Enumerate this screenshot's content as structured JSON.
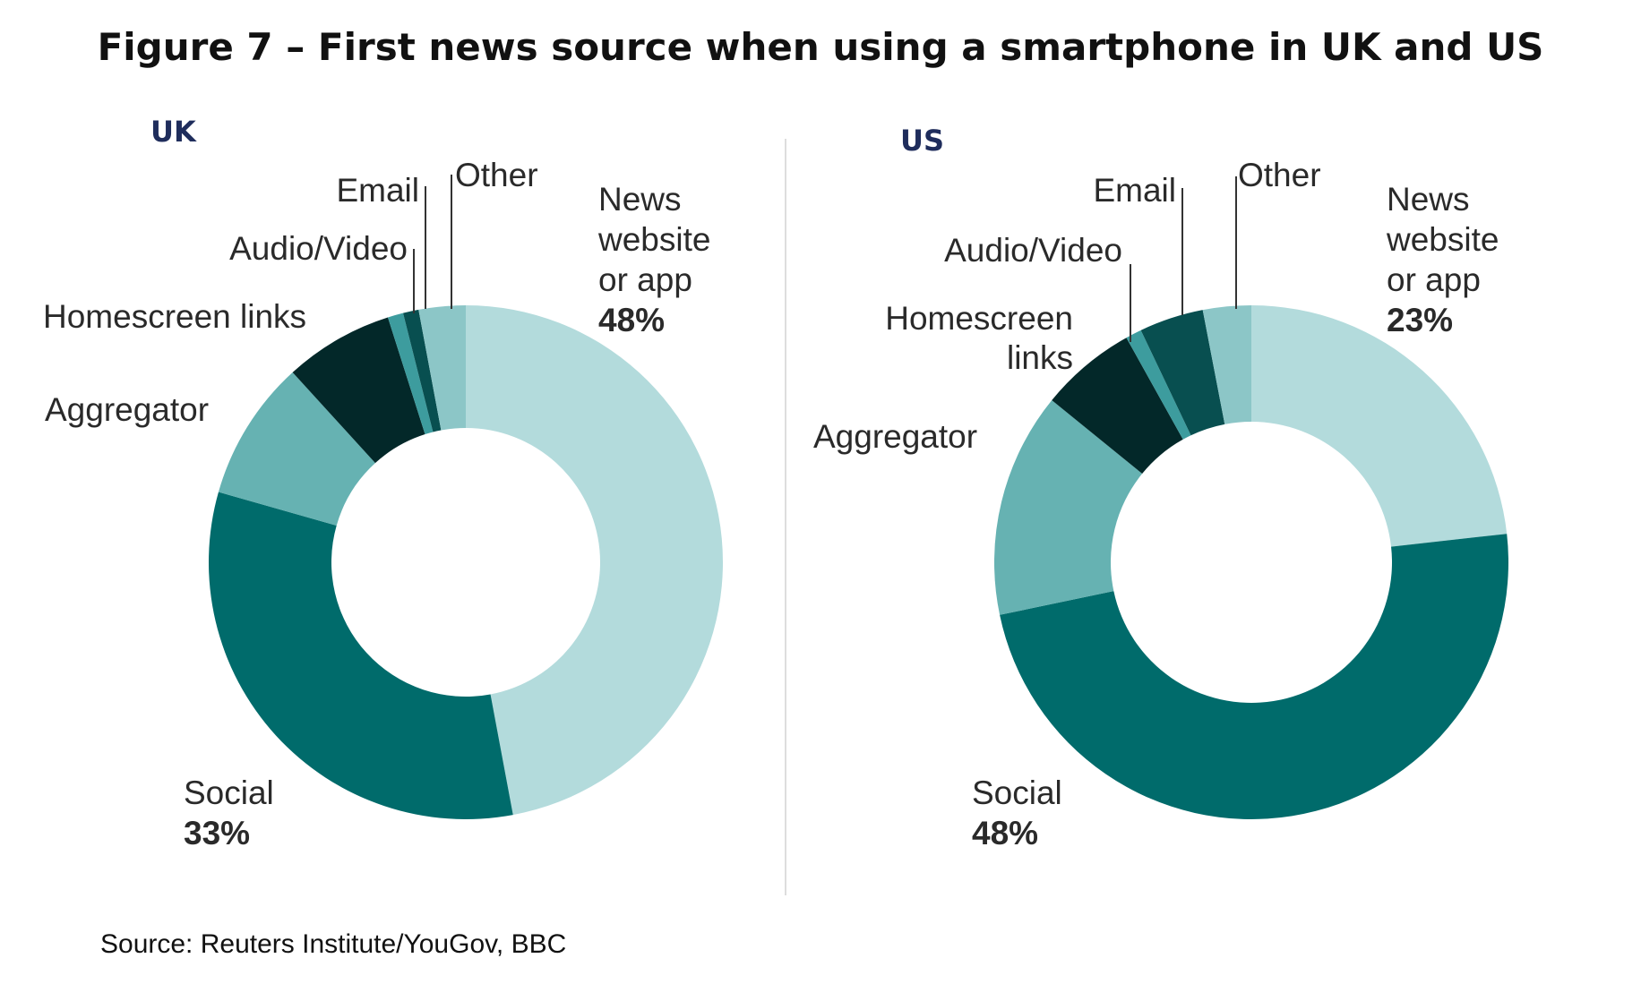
{
  "figure": {
    "title": "Figure 7 – First news source when using a smartphone in UK and US",
    "source": "Source: Reuters Institute/YouGov, BBC"
  },
  "colors": {
    "news_website": "#b3dbdc",
    "social": "#006b6b",
    "aggregator": "#66b2b2",
    "homescreen": "#032829",
    "audio_video": "#3d9c9e",
    "email": "#084f50",
    "other": "#8cc6c7",
    "leader": "#333333"
  },
  "chart_data": [
    {
      "type": "pie",
      "title": "UK",
      "categories": [
        "News website or app",
        "Social",
        "Aggregator",
        "Homescreen links",
        "Audio/Video",
        "Email",
        "Other"
      ],
      "values": [
        48,
        33,
        9,
        7,
        1,
        1,
        3
      ],
      "labels": {
        "news": [
          "News",
          "website",
          "or app"
        ],
        "news_pct": "48%",
        "social": "Social",
        "social_pct": "33%",
        "aggregator": "Aggregator",
        "homescreen": [
          "Homescreen links"
        ],
        "audio_video": "Audio/Video",
        "email": "Email",
        "other": "Other"
      }
    },
    {
      "type": "pie",
      "title": "US",
      "categories": [
        "News website or app",
        "Social",
        "Aggregator",
        "Homescreen links",
        "Audio/Video",
        "Email",
        "Other"
      ],
      "values": [
        23,
        48,
        14,
        6,
        1,
        4,
        3
      ],
      "labels": {
        "news": [
          "News",
          "website",
          "or app"
        ],
        "news_pct": "23%",
        "social": "Social",
        "social_pct": "48%",
        "aggregator": "Aggregator",
        "homescreen": [
          "Homescreen",
          "links"
        ],
        "audio_video": "Audio/Video",
        "email": "Email",
        "other": "Other"
      }
    }
  ]
}
